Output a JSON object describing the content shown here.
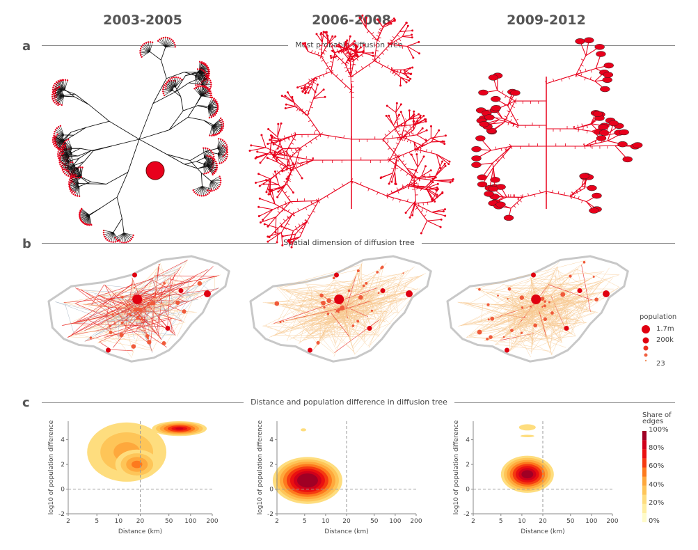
{
  "columns": [
    "2003-2005",
    "2006-2008",
    "2009-2012"
  ],
  "sections": [
    {
      "label": "a",
      "title": "Most probable diffusion tree"
    },
    {
      "label": "b",
      "title": "Spatial dimension of diffusion tree"
    },
    {
      "label": "c",
      "title": "Distance and population difference in diffusion tree"
    }
  ],
  "population_legend": {
    "title": "population",
    "max_label": "1.7m",
    "mid_label": "200k",
    "min_label": "23"
  },
  "colorbar": {
    "title_line1": "Share of",
    "title_line2": "edges",
    "ticks": [
      "100%",
      "80%",
      "60%",
      "40%",
      "20%",
      "0%"
    ],
    "colors": [
      "#fffbc8",
      "#ffeea0",
      "#fedd7e",
      "#fec558",
      "#fea83c",
      "#fd7a1e",
      "#f53a10",
      "#ea1010",
      "#d0001a",
      "#a00024"
    ]
  },
  "colors": {
    "tree_edge": "#111111",
    "tree_node": "#e8001c",
    "map_outline": "#c8c8c8",
    "map_edge_light": "#f7c890",
    "map_edge_dark": "#e8201c"
  },
  "chart_data": [
    {
      "type": "heatmap",
      "xlabel": "Distance (km)",
      "ylabel": "log10 of population difference",
      "xscale": "log",
      "xlim": [
        2,
        200
      ],
      "ylim": [
        -2,
        5.5
      ],
      "xticks": [
        "2",
        "5",
        "10",
        "20",
        "50",
        "100",
        "200"
      ],
      "yticks": [
        "-2",
        "0",
        "2",
        "4"
      ],
      "reference_lines": {
        "x": 20,
        "y": 0
      },
      "density_peaks": [
        {
          "distance_km": 13,
          "log_pop_diff": 3,
          "max_share_pct": 40
        },
        {
          "distance_km": 70,
          "log_pop_diff": 4.9,
          "max_share_pct": 70
        }
      ]
    },
    {
      "type": "heatmap",
      "xlabel": "Distance (km)",
      "ylabel": "log10 of population difference",
      "xscale": "log",
      "xlim": [
        2,
        200
      ],
      "ylim": [
        -2,
        5.5
      ],
      "xticks": [
        "2",
        "5",
        "10",
        "20",
        "50",
        "100",
        "200"
      ],
      "yticks": [
        "-2",
        "0",
        "2",
        "4"
      ],
      "reference_lines": {
        "x": 20,
        "y": 0
      },
      "density_peaks": [
        {
          "distance_km": 5.5,
          "log_pop_diff": 0.6,
          "max_share_pct": 100
        }
      ]
    },
    {
      "type": "heatmap",
      "xlabel": "Distance (km)",
      "ylabel": "log10 of population difference",
      "xscale": "log",
      "xlim": [
        2,
        200
      ],
      "ylim": [
        -2,
        5.5
      ],
      "xticks": [
        "2",
        "5",
        "10",
        "20",
        "50",
        "100",
        "200"
      ],
      "yticks": [
        "-2",
        "0",
        "2",
        "4"
      ],
      "reference_lines": {
        "x": 20,
        "y": 0
      },
      "density_peaks": [
        {
          "distance_km": 12,
          "log_pop_diff": 1.2,
          "max_share_pct": 90
        }
      ]
    }
  ]
}
